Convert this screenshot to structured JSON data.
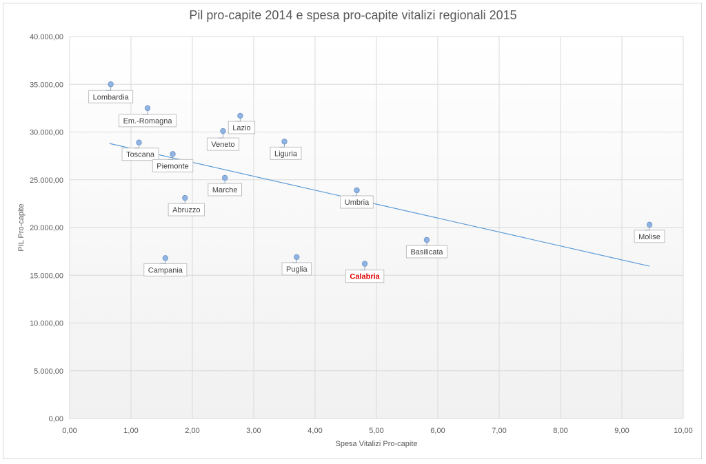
{
  "chart_data": {
    "type": "scatter",
    "title": "Pil pro-capite 2014 e spesa pro-capite vitalizi regionali 2015",
    "xlabel": "Spesa Vitalizi Pro-capite",
    "ylabel": "PIL Pro-capite",
    "xlim": [
      0,
      10
    ],
    "ylim": [
      0,
      40000
    ],
    "x_ticks": [
      "0,00",
      "1,00",
      "2,00",
      "3,00",
      "4,00",
      "5,00",
      "6,00",
      "7,00",
      "8,00",
      "9,00",
      "10,00"
    ],
    "y_ticks": [
      "0,00",
      "5.000,00",
      "10.000,00",
      "15.000,00",
      "20.000,00",
      "25.000,00",
      "30.000,00",
      "35.000,00",
      "40.000,00"
    ],
    "grid": true,
    "marker_color": "#8fb4e3",
    "trendline_color": "#5b9bd5",
    "highlight_color": "#e00000",
    "trendline": {
      "x": [
        0.65,
        9.45
      ],
      "y": [
        28800,
        15950
      ]
    },
    "points": [
      {
        "label": "Lombardia",
        "x": 0.67,
        "y": 35000
      },
      {
        "label": "Em.-Romagna",
        "x": 1.27,
        "y": 32500
      },
      {
        "label": "Lazio",
        "x": 2.78,
        "y": 31700
      },
      {
        "label": "Veneto",
        "x": 2.5,
        "y": 30100
      },
      {
        "label": "Liguria",
        "x": 3.5,
        "y": 29000
      },
      {
        "label": "Toscana",
        "x": 1.13,
        "y": 28900
      },
      {
        "label": "Piemonte",
        "x": 1.68,
        "y": 27700
      },
      {
        "label": "Marche",
        "x": 2.53,
        "y": 25200
      },
      {
        "label": "Umbria",
        "x": 4.68,
        "y": 23900
      },
      {
        "label": "Abruzzo",
        "x": 1.88,
        "y": 23100
      },
      {
        "label": "Molise",
        "x": 9.45,
        "y": 20300
      },
      {
        "label": "Basilicata",
        "x": 5.82,
        "y": 18700
      },
      {
        "label": "Puglia",
        "x": 3.7,
        "y": 16900
      },
      {
        "label": "Campania",
        "x": 1.56,
        "y": 16800
      },
      {
        "label": "Calabria",
        "x": 4.81,
        "y": 16200,
        "highlight": true
      }
    ]
  }
}
